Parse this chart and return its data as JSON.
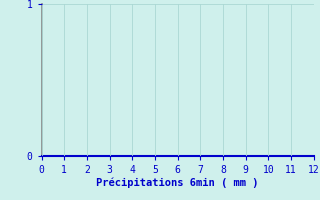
{
  "title": "",
  "xlabel": "Précipitations 6min ( mm )",
  "ylabel": "",
  "xlim": [
    0,
    12
  ],
  "ylim": [
    0,
    1
  ],
  "xticks": [
    0,
    1,
    2,
    3,
    4,
    5,
    6,
    7,
    8,
    9,
    10,
    11,
    12
  ],
  "yticks": [
    0,
    1
  ],
  "background_color": "#cff0ec",
  "grid_color": "#aad8d4",
  "axis_label_color": "#0000cc",
  "tick_label_color": "#0000cc",
  "xlabel_fontsize": 7.5,
  "tick_fontsize": 7,
  "left_spine_color": "#888888",
  "bottom_spine_color": "#0000cc"
}
